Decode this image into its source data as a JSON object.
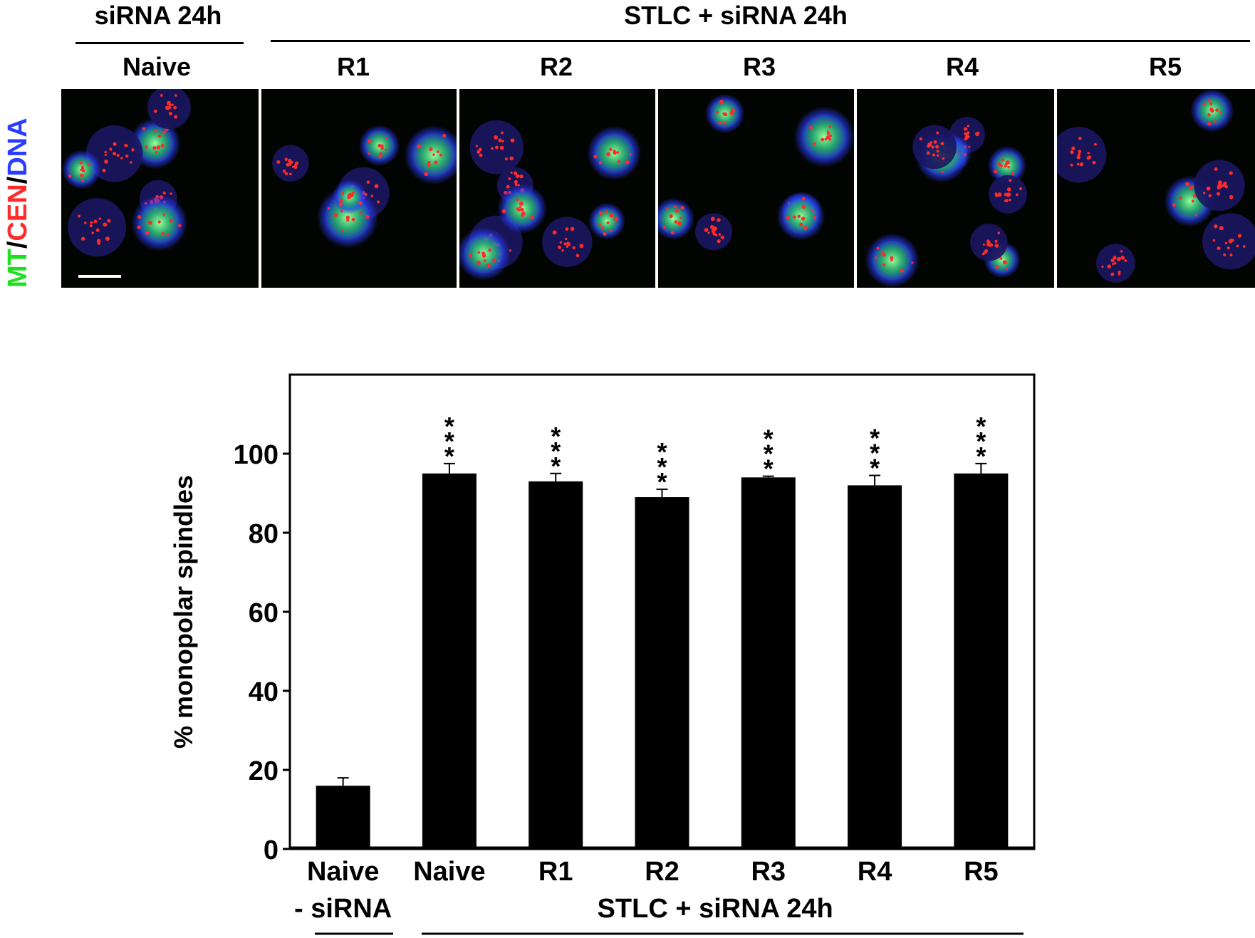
{
  "figure": {
    "top_group_left": "siRNA 24h",
    "top_group_right": "STLC + siRNA 24h",
    "panel_labels": [
      "Naive",
      "R1",
      "R2",
      "R3",
      "R4",
      "R5"
    ],
    "stain_label": {
      "mt": "MT",
      "sep1": "/",
      "cen": "CEN",
      "sep2": "/",
      "dna": "DNA"
    },
    "colors": {
      "mt": "#1ee01e",
      "cen": "#ff2a2a",
      "dna": "#2a3dff"
    }
  },
  "chart_data": {
    "type": "bar",
    "categories": [
      "Naive\n- siRNA",
      "Naive",
      "R1",
      "R2",
      "R3",
      "R4",
      "R5"
    ],
    "values": [
      16,
      95,
      93,
      89,
      94,
      92,
      95
    ],
    "errors": [
      2,
      2.5,
      2,
      2,
      0.3,
      2.5,
      2.5
    ],
    "annotations": [
      "",
      "***",
      "***",
      "***",
      "***",
      "***",
      "***"
    ],
    "ylabel": "% monopolar spindles",
    "yticks": [
      0,
      20,
      40,
      60,
      80,
      100
    ],
    "ylim": [
      0,
      120
    ],
    "group_label_right": "STLC + siRNA 24h",
    "bar_color": "#000000",
    "grid": false
  }
}
